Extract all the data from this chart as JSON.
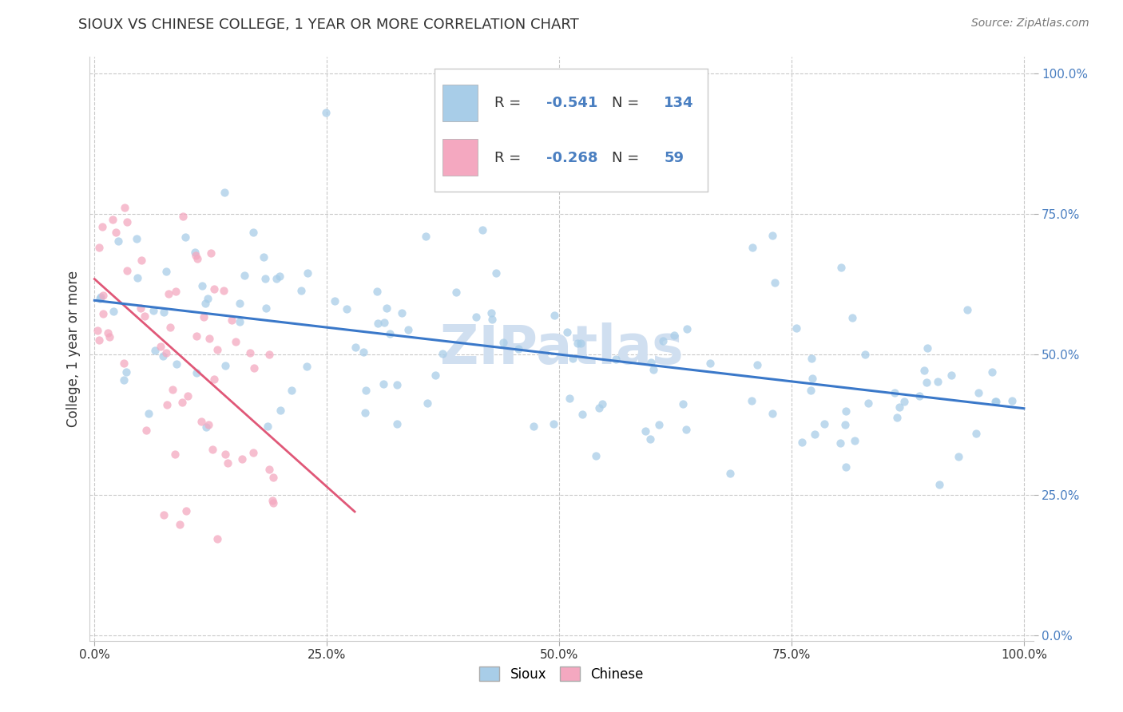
{
  "title": "SIOUX VS CHINESE COLLEGE, 1 YEAR OR MORE CORRELATION CHART",
  "source_text": "Source: ZipAtlas.com",
  "ylabel": "College, 1 year or more",
  "R_sioux": -0.541,
  "N_sioux": 134,
  "R_chinese": -0.268,
  "N_chinese": 59,
  "sioux_color": "#A8CDE8",
  "chinese_color": "#F4A8C0",
  "sioux_line_color": "#3A78C9",
  "chinese_line_color": "#E05878",
  "ytick_color": "#4A7FC1",
  "watermark_color": "#D0DFF0",
  "xlim": [
    0.0,
    1.0
  ],
  "ylim": [
    0.0,
    1.0
  ],
  "x_tick_vals": [
    0.0,
    0.25,
    0.5,
    0.75,
    1.0
  ],
  "y_tick_vals": [
    0.0,
    0.25,
    0.5,
    0.75,
    1.0
  ],
  "x_tick_labels": [
    "0.0%",
    "25.0%",
    "50.0%",
    "75.0%",
    "100.0%"
  ],
  "y_tick_labels": [
    "0.0%",
    "25.0%",
    "50.0%",
    "75.0%",
    "100.0%"
  ]
}
